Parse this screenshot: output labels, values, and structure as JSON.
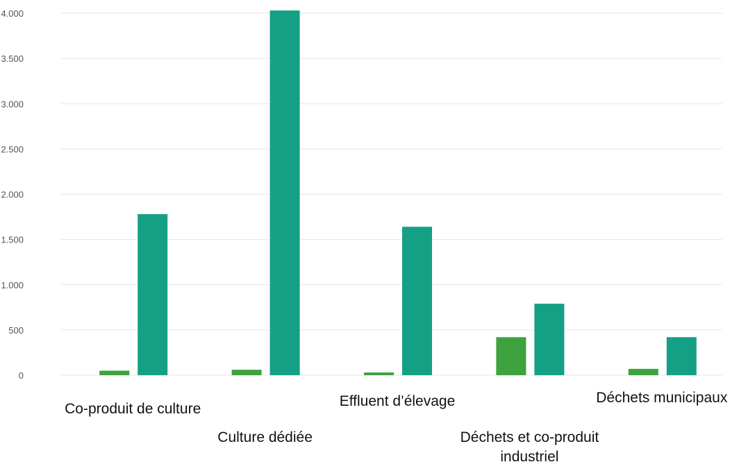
{
  "chart_data": {
    "type": "bar",
    "title": "",
    "xlabel": "",
    "ylabel": "",
    "ylim": [
      0,
      4000
    ],
    "yticks": [
      0,
      500,
      1000,
      1500,
      2000,
      2500,
      3000,
      3500,
      4000
    ],
    "ytick_labels": [
      "0",
      "500",
      "1.000",
      "1.500",
      "2.000",
      "2.500",
      "3.000",
      "3.500",
      "4.000"
    ],
    "grid": true,
    "legend": "none",
    "categories": [
      "Co-produit de culture",
      "Culture dédiée",
      "Effluent d’élevage",
      "Déchets et co-produit industriel",
      "Déchets municipaux"
    ],
    "category_label_lines": [
      [
        "Co-produit de culture"
      ],
      [
        "Culture dédiée"
      ],
      [
        "Effluent d’élevage"
      ],
      [
        "Déchets et co-produit",
        "industriel"
      ],
      [
        "Déchets municipaux"
      ]
    ],
    "series": [
      {
        "values": [
          50,
          60,
          30,
          420,
          70
        ],
        "color": "#3ea33e"
      },
      {
        "values": [
          1780,
          4030,
          1640,
          790,
          420
        ],
        "color": "#14a085"
      }
    ]
  }
}
